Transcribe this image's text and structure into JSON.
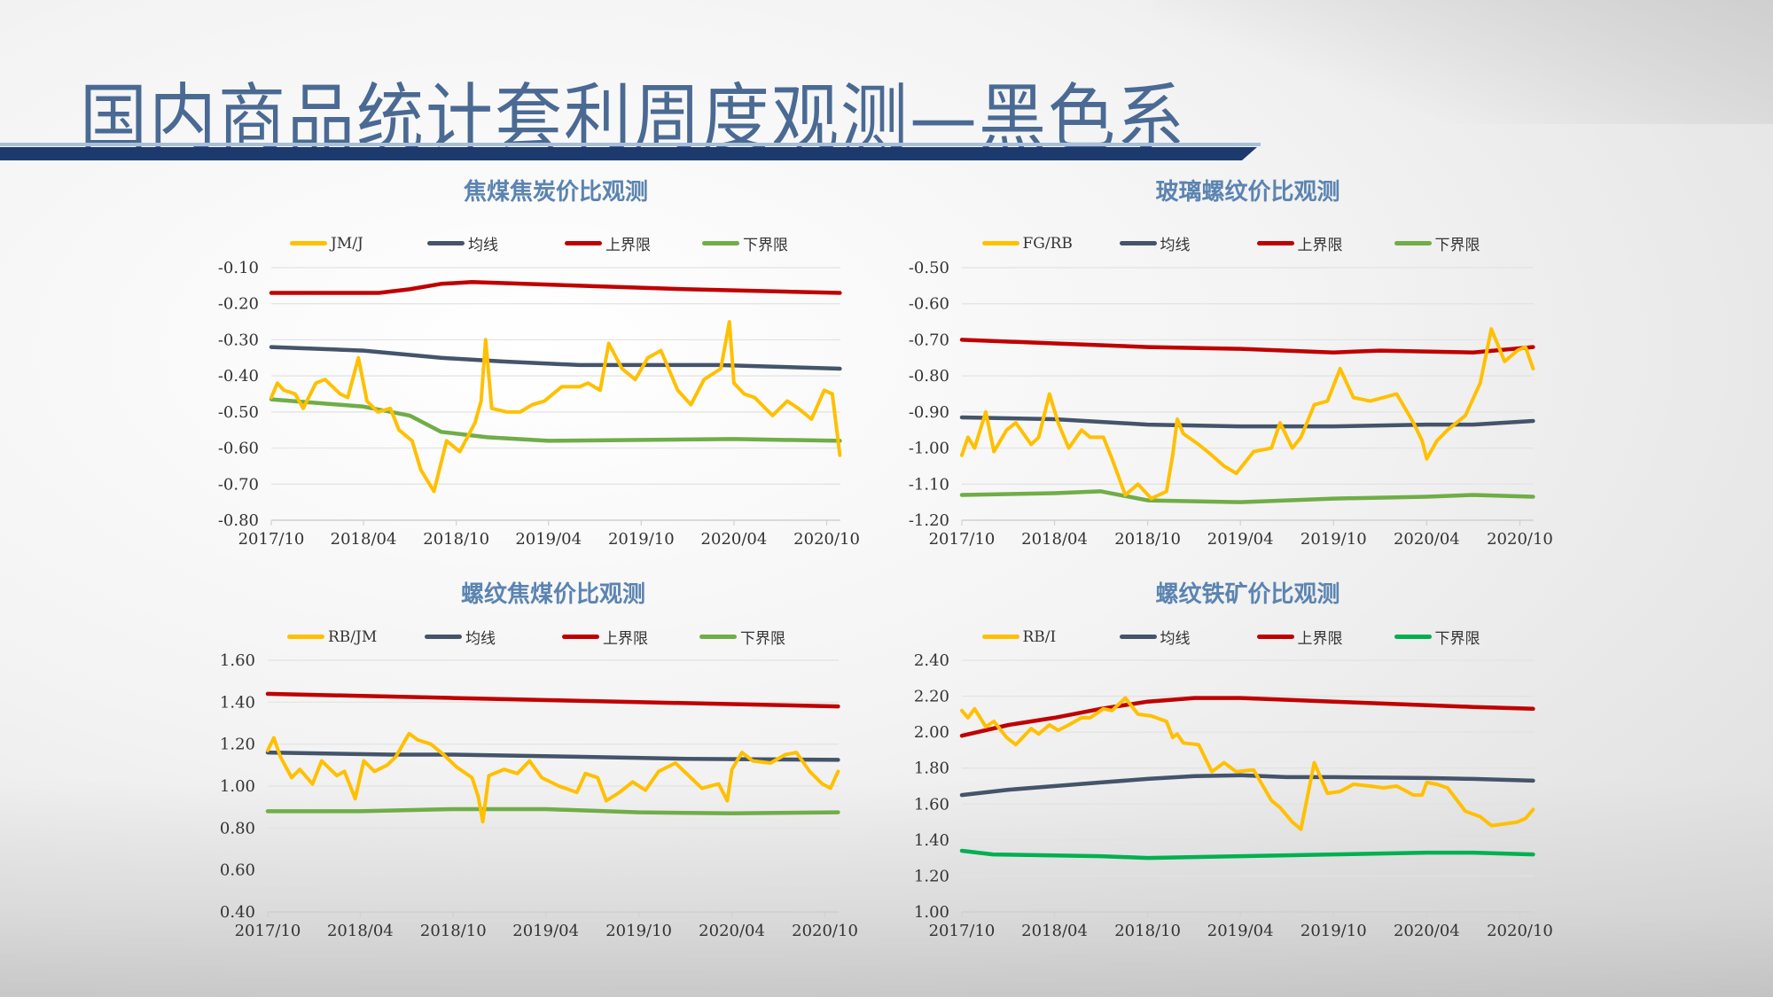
{
  "page": {
    "title": "国内商品统计套利周度观测—黑色系"
  },
  "colors": {
    "title": "#4a6a94",
    "title_bar": "#1c3a6e",
    "chart_title": "#5b84b1"
  },
  "chart_data": [
    {
      "type": "line",
      "title": "焦煤焦炭价比观测",
      "legend_placement": "top",
      "grid": true,
      "ylim": [
        -0.8,
        -0.1
      ],
      "yticks": [
        -0.8,
        -0.7,
        -0.6,
        -0.5,
        -0.4,
        -0.3,
        -0.2,
        -0.1
      ],
      "ytick_labels": [
        "-0.80",
        "-0.70",
        "-0.60",
        "-0.50",
        "-0.40",
        "-0.30",
        "-0.20",
        "-0.10"
      ],
      "xlim": [
        "2017-10-01",
        "2020-10-28"
      ],
      "xticks": [
        "2017-10-01",
        "2018-04-01",
        "2018-10-01",
        "2019-04-01",
        "2019-10-01",
        "2020-04-01",
        "2020-10-01"
      ],
      "xtick_labels": [
        "2017/10",
        "2018/04",
        "2018/10",
        "2019/04",
        "2019/10",
        "2020/04",
        "2020/10"
      ],
      "series": [
        {
          "name": "JM/J",
          "color": "#ffc000",
          "x": [
            "2017-10-01",
            "2017-10-13",
            "2017-10-26",
            "2017-11-17",
            "2017-12-03",
            "2017-12-28",
            "2018-01-15",
            "2018-02-14",
            "2018-03-01",
            "2018-03-22",
            "2018-04-08",
            "2018-04-29",
            "2018-05-24",
            "2018-06-10",
            "2018-07-06",
            "2018-07-23",
            "2018-08-18",
            "2018-09-12",
            "2018-10-08",
            "2018-11-07",
            "2018-11-19",
            "2018-11-28",
            "2018-12-10",
            "2019-01-09",
            "2019-02-04",
            "2019-02-28",
            "2019-03-24",
            "2019-04-27",
            "2019-06-01",
            "2019-06-18",
            "2019-07-12",
            "2019-07-29",
            "2019-08-24",
            "2019-09-19",
            "2019-10-14",
            "2019-11-09",
            "2019-12-12",
            "2020-01-07",
            "2020-02-02",
            "2020-03-06",
            "2020-03-23",
            "2020-04-01",
            "2020-04-21",
            "2020-05-12",
            "2020-06-16",
            "2020-07-15",
            "2020-08-06",
            "2020-09-01",
            "2020-09-26",
            "2020-10-12",
            "2020-10-27"
          ],
          "y": [
            -0.46,
            -0.42,
            -0.44,
            -0.45,
            -0.49,
            -0.42,
            -0.41,
            -0.45,
            -0.46,
            -0.35,
            -0.47,
            -0.5,
            -0.49,
            -0.55,
            -0.58,
            -0.66,
            -0.72,
            -0.58,
            -0.61,
            -0.53,
            -0.47,
            -0.3,
            -0.49,
            -0.5,
            -0.5,
            -0.48,
            -0.47,
            -0.43,
            -0.43,
            -0.42,
            -0.44,
            -0.31,
            -0.38,
            -0.41,
            -0.35,
            -0.33,
            -0.44,
            -0.48,
            -0.41,
            -0.38,
            -0.25,
            -0.42,
            -0.45,
            -0.46,
            -0.51,
            -0.47,
            -0.49,
            -0.52,
            -0.44,
            -0.45,
            -0.62
          ]
        },
        {
          "name": "均线",
          "color": "#44546a",
          "x": [
            "2017-10-01",
            "2018-04-01",
            "2018-09-01",
            "2019-01-01",
            "2019-06-01",
            "2020-03-01",
            "2020-10-27"
          ],
          "y": [
            -0.32,
            -0.33,
            -0.35,
            -0.36,
            -0.37,
            -0.37,
            -0.38
          ]
        },
        {
          "name": "上界限",
          "color": "#c00000",
          "x": [
            "2017-10-01",
            "2018-05-01",
            "2018-07-01",
            "2018-09-01",
            "2018-11-01",
            "2019-06-01",
            "2020-01-01",
            "2020-10-27"
          ],
          "y": [
            -0.17,
            -0.17,
            -0.16,
            -0.145,
            -0.14,
            -0.15,
            -0.16,
            -0.17
          ]
        },
        {
          "name": "下界限",
          "color": "#70ad47",
          "x": [
            "2017-10-01",
            "2018-04-01",
            "2018-07-01",
            "2018-09-01",
            "2018-12-01",
            "2019-04-01",
            "2020-04-01",
            "2020-10-27"
          ],
          "y": [
            -0.465,
            -0.485,
            -0.51,
            -0.555,
            -0.57,
            -0.58,
            -0.575,
            -0.58
          ]
        }
      ]
    },
    {
      "type": "line",
      "title": "玻璃螺纹价比观测",
      "legend_placement": "top",
      "grid": true,
      "ylim": [
        -1.2,
        -0.5
      ],
      "yticks": [
        -1.2,
        -1.1,
        -1.0,
        -0.9,
        -0.8,
        -0.7,
        -0.6,
        -0.5
      ],
      "ytick_labels": [
        "-1.20",
        "-1.10",
        "-1.00",
        "-0.90",
        "-0.80",
        "-0.70",
        "-0.60",
        "-0.50"
      ],
      "xlim": [
        "2017-10-01",
        "2020-10-28"
      ],
      "xticks": [
        "2017-10-01",
        "2018-04-01",
        "2018-10-01",
        "2019-04-01",
        "2019-10-01",
        "2020-04-01",
        "2020-10-01"
      ],
      "xtick_labels": [
        "2017/10",
        "2018/04",
        "2018/10",
        "2019/04",
        "2019/10",
        "2020/04",
        "2020/10"
      ],
      "series": [
        {
          "name": "FG/RB",
          "color": "#ffc000",
          "x": [
            "2017-10-01",
            "2017-10-13",
            "2017-10-26",
            "2017-11-17",
            "2017-12-03",
            "2017-12-28",
            "2018-01-15",
            "2018-02-14",
            "2018-03-01",
            "2018-03-22",
            "2018-04-08",
            "2018-04-29",
            "2018-05-24",
            "2018-06-10",
            "2018-07-06",
            "2018-07-23",
            "2018-08-18",
            "2018-09-12",
            "2018-10-08",
            "2018-11-07",
            "2018-11-19",
            "2018-11-28",
            "2018-12-10",
            "2019-01-09",
            "2019-02-04",
            "2019-02-28",
            "2019-03-24",
            "2019-04-27",
            "2019-06-01",
            "2019-06-18",
            "2019-07-12",
            "2019-07-29",
            "2019-08-24",
            "2019-09-19",
            "2019-10-14",
            "2019-11-09",
            "2019-12-12",
            "2020-01-07",
            "2020-02-02",
            "2020-03-06",
            "2020-03-23",
            "2020-04-01",
            "2020-04-21",
            "2020-05-12",
            "2020-06-16",
            "2020-07-15",
            "2020-08-06",
            "2020-09-01",
            "2020-09-26",
            "2020-10-12",
            "2020-10-27"
          ],
          "y": [
            -1.02,
            -0.97,
            -1.0,
            -0.9,
            -1.01,
            -0.95,
            -0.93,
            -0.99,
            -0.97,
            -0.85,
            -0.93,
            -1.0,
            -0.95,
            -0.97,
            -0.97,
            -1.03,
            -1.13,
            -1.1,
            -1.14,
            -1.12,
            -1.02,
            -0.92,
            -0.96,
            -0.99,
            -1.02,
            -1.05,
            -1.07,
            -1.01,
            -1.0,
            -0.93,
            -1.0,
            -0.97,
            -0.88,
            -0.87,
            -0.78,
            -0.86,
            -0.87,
            -0.86,
            -0.85,
            -0.93,
            -0.98,
            -1.03,
            -0.98,
            -0.95,
            -0.91,
            -0.82,
            -0.67,
            -0.76,
            -0.73,
            -0.72,
            -0.78
          ]
        },
        {
          "name": "均线",
          "color": "#44546a",
          "x": [
            "2017-10-01",
            "2018-04-01",
            "2018-10-01",
            "2019-04-01",
            "2019-10-01",
            "2020-04-01",
            "2020-07-01",
            "2020-10-27"
          ],
          "y": [
            -0.915,
            -0.92,
            -0.935,
            -0.94,
            -0.94,
            -0.935,
            -0.935,
            -0.925
          ]
        },
        {
          "name": "上界限",
          "color": "#c00000",
          "x": [
            "2017-10-01",
            "2018-04-01",
            "2018-10-01",
            "2019-04-01",
            "2019-10-01",
            "2020-01-01",
            "2020-07-01",
            "2020-10-27"
          ],
          "y": [
            -0.7,
            -0.71,
            -0.72,
            -0.725,
            -0.735,
            -0.73,
            -0.735,
            -0.72
          ]
        },
        {
          "name": "下界限",
          "color": "#70ad47",
          "x": [
            "2017-10-01",
            "2018-04-01",
            "2018-07-01",
            "2018-10-01",
            "2019-04-01",
            "2019-10-01",
            "2020-04-01",
            "2020-07-01",
            "2020-10-27"
          ],
          "y": [
            -1.13,
            -1.125,
            -1.12,
            -1.145,
            -1.15,
            -1.14,
            -1.135,
            -1.13,
            -1.135
          ]
        }
      ]
    },
    {
      "type": "line",
      "title": "螺纹焦煤价比观测",
      "legend_placement": "top",
      "grid": true,
      "ylim": [
        0.4,
        1.6
      ],
      "yticks": [
        0.4,
        0.6,
        0.8,
        1.0,
        1.2,
        1.4,
        1.6
      ],
      "ytick_labels": [
        "0.40",
        "0.60",
        "0.80",
        "1.00",
        "1.20",
        "1.40",
        "1.60"
      ],
      "xlim": [
        "2017-10-01",
        "2020-10-28"
      ],
      "xticks": [
        "2017-10-01",
        "2018-04-01",
        "2018-10-01",
        "2019-04-01",
        "2019-10-01",
        "2020-04-01",
        "2020-10-01"
      ],
      "xtick_labels": [
        "2017/10",
        "2018/04",
        "2018/10",
        "2019/04",
        "2019/10",
        "2020/04",
        "2020/10"
      ],
      "series": [
        {
          "name": "RB/JM",
          "color": "#ffc000",
          "x": [
            "2017-10-01",
            "2017-10-13",
            "2017-10-26",
            "2017-11-17",
            "2017-12-03",
            "2017-12-28",
            "2018-01-15",
            "2018-02-14",
            "2018-03-01",
            "2018-03-22",
            "2018-04-08",
            "2018-04-29",
            "2018-05-24",
            "2018-06-10",
            "2018-07-06",
            "2018-07-23",
            "2018-08-18",
            "2018-09-12",
            "2018-10-08",
            "2018-11-07",
            "2018-11-19",
            "2018-11-28",
            "2018-12-10",
            "2019-01-09",
            "2019-02-04",
            "2019-02-28",
            "2019-03-24",
            "2019-04-27",
            "2019-06-01",
            "2019-06-18",
            "2019-07-12",
            "2019-07-29",
            "2019-08-24",
            "2019-09-19",
            "2019-10-14",
            "2019-11-09",
            "2019-12-12",
            "2020-01-07",
            "2020-02-02",
            "2020-03-06",
            "2020-03-23",
            "2020-04-01",
            "2020-04-21",
            "2020-05-12",
            "2020-06-16",
            "2020-07-15",
            "2020-08-06",
            "2020-09-01",
            "2020-09-26",
            "2020-10-12",
            "2020-10-27"
          ],
          "y": [
            1.17,
            1.23,
            1.14,
            1.04,
            1.08,
            1.01,
            1.12,
            1.05,
            1.07,
            0.94,
            1.12,
            1.07,
            1.1,
            1.14,
            1.25,
            1.22,
            1.2,
            1.15,
            1.09,
            1.04,
            0.95,
            0.83,
            1.05,
            1.08,
            1.06,
            1.12,
            1.04,
            1.0,
            0.97,
            1.06,
            1.04,
            0.93,
            0.97,
            1.02,
            0.98,
            1.07,
            1.11,
            1.05,
            0.99,
            1.01,
            0.93,
            1.08,
            1.16,
            1.12,
            1.11,
            1.15,
            1.16,
            1.07,
            1.01,
            0.99,
            1.07
          ]
        },
        {
          "name": "均线",
          "color": "#44546a",
          "x": [
            "2017-10-01",
            "2018-06-01",
            "2018-10-01",
            "2019-06-01",
            "2020-01-01",
            "2020-10-27"
          ],
          "y": [
            1.16,
            1.15,
            1.15,
            1.14,
            1.13,
            1.125
          ]
        },
        {
          "name": "上界限",
          "color": "#c00000",
          "x": [
            "2017-10-01",
            "2018-10-01",
            "2019-10-01",
            "2020-10-27"
          ],
          "y": [
            1.44,
            1.42,
            1.4,
            1.38
          ]
        },
        {
          "name": "下界限",
          "color": "#70ad47",
          "x": [
            "2017-10-01",
            "2018-04-01",
            "2018-10-01",
            "2019-04-01",
            "2019-10-01",
            "2020-04-01",
            "2020-10-27"
          ],
          "y": [
            0.88,
            0.88,
            0.89,
            0.89,
            0.875,
            0.87,
            0.875
          ]
        }
      ]
    },
    {
      "type": "line",
      "title": "螺纹铁矿价比观测",
      "legend_placement": "top",
      "grid": true,
      "ylim": [
        1.0,
        2.4
      ],
      "yticks": [
        1.0,
        1.2,
        1.4,
        1.6,
        1.8,
        2.0,
        2.2,
        2.4
      ],
      "ytick_labels": [
        "1.00",
        "1.20",
        "1.40",
        "1.60",
        "1.80",
        "2.00",
        "2.20",
        "2.40"
      ],
      "xlim": [
        "2017-10-01",
        "2020-10-28"
      ],
      "xticks": [
        "2017-10-01",
        "2018-04-01",
        "2018-10-01",
        "2019-04-01",
        "2019-10-01",
        "2020-04-01",
        "2020-10-01"
      ],
      "xtick_labels": [
        "2017/10",
        "2018/04",
        "2018/10",
        "2019/04",
        "2019/10",
        "2020/04",
        "2020/10"
      ],
      "series": [
        {
          "name": "RB/I",
          "color": "#ffc000",
          "x": [
            "2017-10-01",
            "2017-10-13",
            "2017-10-26",
            "2017-11-17",
            "2017-12-03",
            "2017-12-28",
            "2018-01-15",
            "2018-02-14",
            "2018-03-01",
            "2018-03-22",
            "2018-04-08",
            "2018-04-29",
            "2018-05-24",
            "2018-06-10",
            "2018-07-06",
            "2018-07-23",
            "2018-08-18",
            "2018-09-12",
            "2018-10-08",
            "2018-11-07",
            "2018-11-19",
            "2018-11-28",
            "2018-12-10",
            "2019-01-09",
            "2019-02-04",
            "2019-02-28",
            "2019-03-24",
            "2019-04-27",
            "2019-06-01",
            "2019-06-18",
            "2019-07-12",
            "2019-07-29",
            "2019-08-24",
            "2019-09-19",
            "2019-10-14",
            "2019-11-09",
            "2019-12-12",
            "2020-01-07",
            "2020-02-02",
            "2020-03-06",
            "2020-03-23",
            "2020-04-01",
            "2020-04-21",
            "2020-05-12",
            "2020-06-16",
            "2020-07-15",
            "2020-08-06",
            "2020-09-01",
            "2020-09-26",
            "2020-10-12",
            "2020-10-27"
          ],
          "y": [
            2.12,
            2.08,
            2.13,
            2.03,
            2.06,
            1.97,
            1.93,
            2.02,
            1.99,
            2.04,
            2.01,
            2.04,
            2.08,
            2.08,
            2.13,
            2.12,
            2.19,
            2.1,
            2.09,
            2.06,
            1.97,
            1.99,
            1.94,
            1.93,
            1.78,
            1.83,
            1.78,
            1.79,
            1.62,
            1.58,
            1.5,
            1.46,
            1.83,
            1.66,
            1.67,
            1.71,
            1.7,
            1.69,
            1.7,
            1.65,
            1.65,
            1.72,
            1.71,
            1.69,
            1.56,
            1.53,
            1.48,
            1.49,
            1.5,
            1.52,
            1.57
          ]
        },
        {
          "name": "均线",
          "color": "#44546a",
          "x": [
            "2017-10-01",
            "2018-01-01",
            "2018-04-01",
            "2018-07-01",
            "2018-10-01",
            "2019-01-01",
            "2019-04-01",
            "2019-07-01",
            "2019-10-01",
            "2020-04-01",
            "2020-07-01",
            "2020-10-27"
          ],
          "y": [
            1.65,
            1.68,
            1.7,
            1.72,
            1.74,
            1.755,
            1.76,
            1.75,
            1.75,
            1.745,
            1.74,
            1.73
          ]
        },
        {
          "name": "上界限",
          "color": "#c00000",
          "x": [
            "2017-10-01",
            "2018-01-01",
            "2018-04-01",
            "2018-07-01",
            "2018-10-01",
            "2019-01-01",
            "2019-04-01",
            "2019-07-01",
            "2019-10-01",
            "2020-01-01",
            "2020-04-01",
            "2020-07-01",
            "2020-10-27"
          ],
          "y": [
            1.98,
            2.04,
            2.08,
            2.13,
            2.17,
            2.19,
            2.19,
            2.18,
            2.17,
            2.16,
            2.15,
            2.14,
            2.13
          ]
        },
        {
          "name": "下界限",
          "color": "#00b050",
          "x": [
            "2017-10-01",
            "2017-12-01",
            "2018-07-01",
            "2018-10-01",
            "2019-04-01",
            "2019-07-01",
            "2019-10-01",
            "2020-04-01",
            "2020-07-01",
            "2020-10-27"
          ],
          "y": [
            1.34,
            1.32,
            1.31,
            1.3,
            1.31,
            1.315,
            1.32,
            1.33,
            1.33,
            1.32
          ]
        }
      ]
    }
  ]
}
